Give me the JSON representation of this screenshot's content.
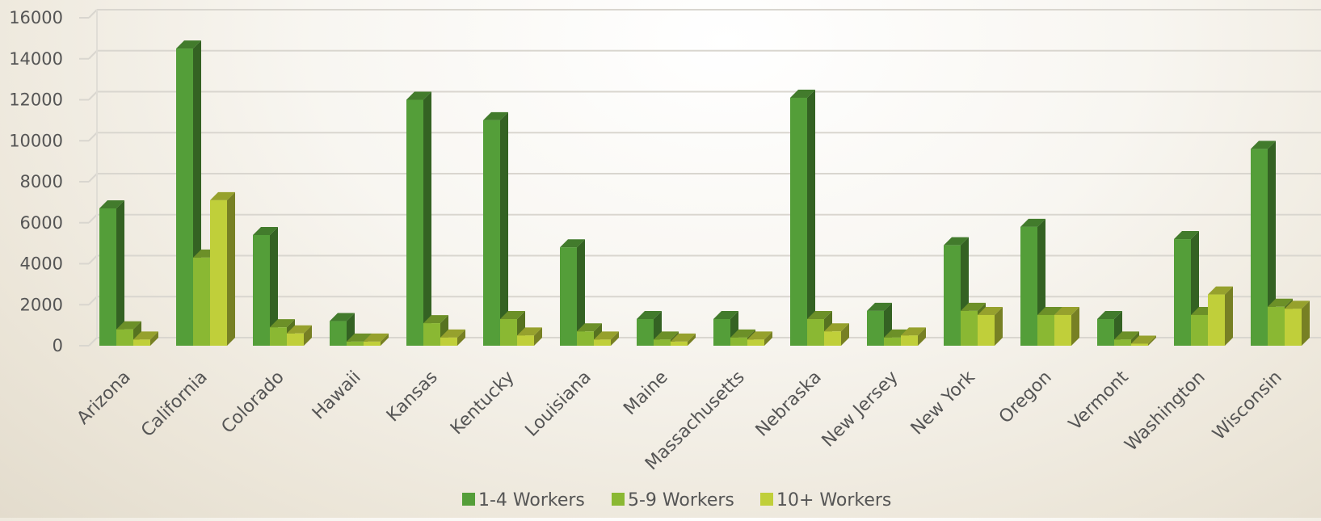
{
  "chart_data": {
    "type": "bar",
    "title": "",
    "xlabel": "",
    "ylabel": "",
    "ylim": [
      0,
      16000
    ],
    "yticks": [
      0,
      2000,
      4000,
      6000,
      8000,
      10000,
      12000,
      14000,
      16000
    ],
    "grid": true,
    "legend_position": "bottom",
    "categories": [
      "Arizona",
      "California",
      "Colorado",
      "Hawaii",
      "Kansas",
      "Kentucky",
      "Louisiana",
      "Maine",
      "Massachusetts",
      "Nebraska",
      "New Jersey",
      "New York",
      "Oregon",
      "Vermont",
      "Washington",
      "Wisconsin"
    ],
    "series": [
      {
        "name": "1-4 Workers",
        "color": "#549e39",
        "values": [
          6700,
          14500,
          5400,
          1200,
          12000,
          11000,
          4800,
          1300,
          1300,
          12100,
          1700,
          4900,
          5800,
          1300,
          5200,
          9600
        ]
      },
      {
        "name": "5-9 Workers",
        "color": "#8ab833",
        "values": [
          800,
          4300,
          900,
          200,
          1100,
          1300,
          700,
          300,
          400,
          1300,
          400,
          1700,
          1500,
          300,
          1500,
          1900
        ]
      },
      {
        "name": "10+ Workers",
        "color": "#c0cf3a",
        "values": [
          300,
          7100,
          600,
          200,
          400,
          500,
          300,
          200,
          300,
          700,
          500,
          1500,
          1500,
          100,
          2500,
          1800
        ]
      }
    ]
  }
}
